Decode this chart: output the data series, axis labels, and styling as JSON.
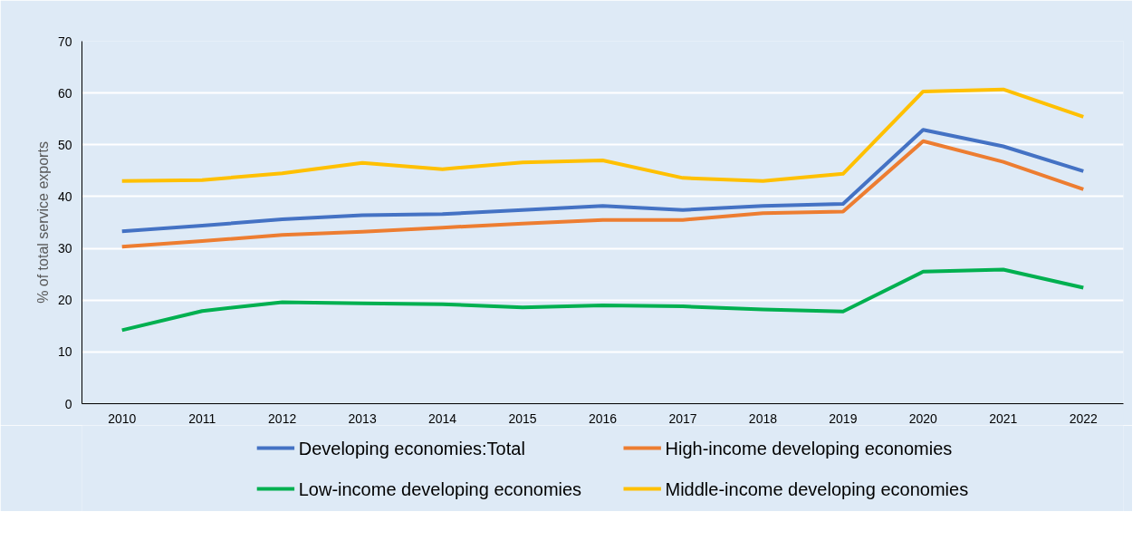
{
  "chart_data": {
    "type": "line",
    "ylabel": "% of total service exports",
    "categories": [
      "2010",
      "2011",
      "2012",
      "2013",
      "2014",
      "2015",
      "2016",
      "2017",
      "2018",
      "2019",
      "2020",
      "2021",
      "2022"
    ],
    "ylim": [
      0,
      70
    ],
    "yticks": [
      0,
      10,
      20,
      30,
      40,
      50,
      60,
      70
    ],
    "grid": "y",
    "legend": "bottom",
    "marker": "none",
    "line_style": "solid",
    "series": [
      {
        "name": "Developing economies:Total",
        "color": "#4472c4",
        "values": [
          33.3,
          34.4,
          35.6,
          36.4,
          36.6,
          37.4,
          38.2,
          37.4,
          38.2,
          38.6,
          52.9,
          49.7,
          44.9
        ]
      },
      {
        "name": "High-income developing economies",
        "color": "#ed7d31",
        "values": [
          30.3,
          31.4,
          32.6,
          33.2,
          34.0,
          34.8,
          35.5,
          35.5,
          36.8,
          37.1,
          50.7,
          46.7,
          41.4
        ]
      },
      {
        "name": "Low-income developing economies",
        "color": "#00b050",
        "values": [
          14.2,
          17.9,
          19.6,
          19.4,
          19.2,
          18.6,
          19.0,
          18.8,
          18.2,
          17.8,
          25.5,
          25.9,
          22.4
        ]
      },
      {
        "name": "Middle-income developing economies",
        "color": "#ffc000",
        "values": [
          43.0,
          43.2,
          44.5,
          46.5,
          45.3,
          46.6,
          47.0,
          43.6,
          43.0,
          44.4,
          60.3,
          60.7,
          55.4
        ]
      }
    ]
  }
}
